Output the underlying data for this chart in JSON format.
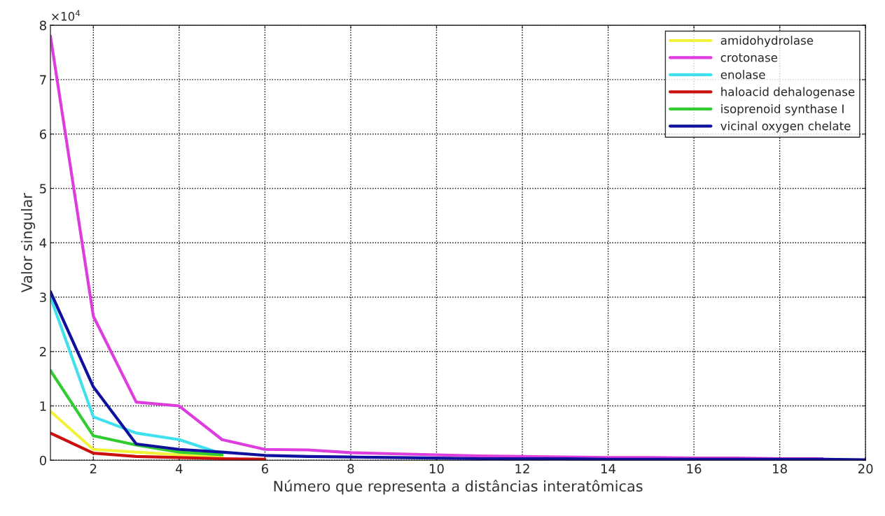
{
  "chart_data": {
    "type": "line",
    "xlabel": "Número que representa a distâncias interatômicas",
    "ylabel": "Valor singular",
    "annotations": [
      "×10$^{4}$"
    ],
    "x": [
      1,
      2,
      3,
      4,
      5,
      6,
      7,
      8,
      9,
      10,
      11,
      12,
      13,
      14,
      15,
      16,
      17,
      18,
      19,
      20
    ],
    "series": [
      {
        "name": "amidohydrolase",
        "color": "#f2f23a",
        "values": [
          0.9,
          0.2,
          0.15,
          0.1,
          0.07,
          null,
          null,
          null,
          null,
          null,
          null,
          null,
          null,
          null,
          null,
          null,
          null,
          null,
          null,
          null
        ]
      },
      {
        "name": "crotonase",
        "color": "#dd3ddd",
        "values": [
          7.8,
          2.65,
          1.07,
          1.0,
          0.38,
          0.2,
          0.19,
          0.14,
          0.12,
          0.1,
          0.08,
          0.07,
          0.06,
          0.05,
          0.05,
          0.04,
          0.04,
          0.03,
          0.03,
          null
        ]
      },
      {
        "name": "enolase",
        "color": "#40e0ee",
        "values": [
          3.0,
          0.8,
          0.5,
          0.38,
          0.12,
          null,
          null,
          null,
          null,
          null,
          null,
          null,
          null,
          null,
          null,
          null,
          null,
          null,
          null,
          null
        ]
      },
      {
        "name": "haloacid dehalogenase",
        "color": "#cc1010",
        "values": [
          0.5,
          0.13,
          0.07,
          0.05,
          0.03,
          0.02,
          null,
          null,
          null,
          null,
          null,
          null,
          null,
          null,
          null,
          null,
          null,
          null,
          null,
          null
        ]
      },
      {
        "name": "isoprenoid synthase I",
        "color": "#30cc30",
        "values": [
          1.65,
          0.45,
          0.28,
          0.15,
          0.1,
          null,
          null,
          null,
          null,
          null,
          null,
          null,
          null,
          null,
          null,
          null,
          null,
          null,
          null,
          null
        ]
      },
      {
        "name": "vicinal oxygen chelate",
        "color": "#10109e",
        "values": [
          3.1,
          1.35,
          0.3,
          0.2,
          0.15,
          0.09,
          0.07,
          0.06,
          0.05,
          0.04,
          0.03,
          0.03,
          0.03,
          0.02,
          0.02,
          0.02,
          0.02,
          0.02,
          0.02,
          0.01
        ]
      }
    ],
    "xlim": [
      1,
      20
    ],
    "xticks": [
      2,
      4,
      6,
      8,
      10,
      12,
      14,
      16,
      18,
      20
    ],
    "ylim": [
      0,
      8
    ],
    "yticks": [
      0,
      1,
      2,
      3,
      4,
      5,
      6,
      7,
      8
    ],
    "grid": true,
    "legend": "top right",
    "marker": "none",
    "line_style": "solid"
  }
}
